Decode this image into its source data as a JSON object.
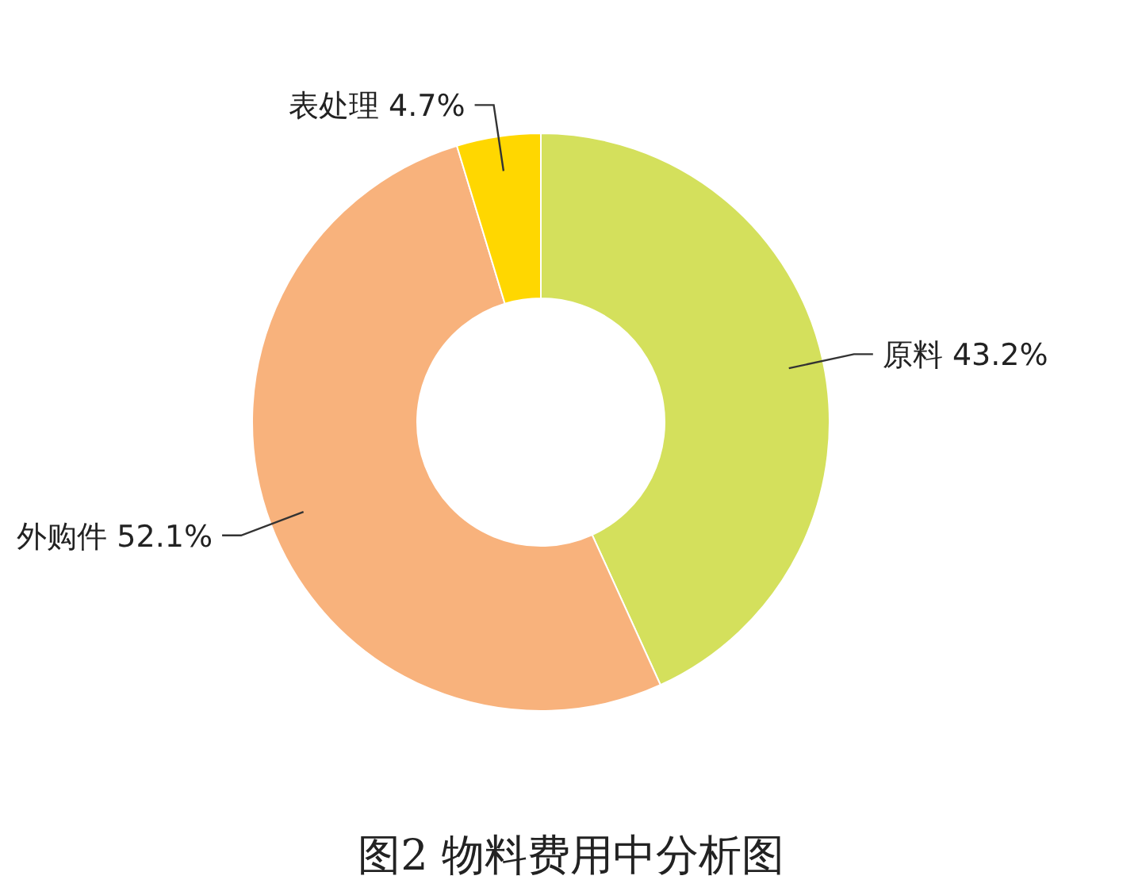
{
  "chart_data": {
    "type": "donut",
    "title": "图2 物料费用中分析图",
    "categories": [
      "原料",
      "外购件",
      "表处理"
    ],
    "values": [
      43.2,
      52.1,
      4.7
    ],
    "value_labels": [
      "43.2%",
      "52.1%",
      "4.7%"
    ],
    "colors": [
      "#d4e05c",
      "#f8b27c",
      "#ffd700"
    ]
  }
}
